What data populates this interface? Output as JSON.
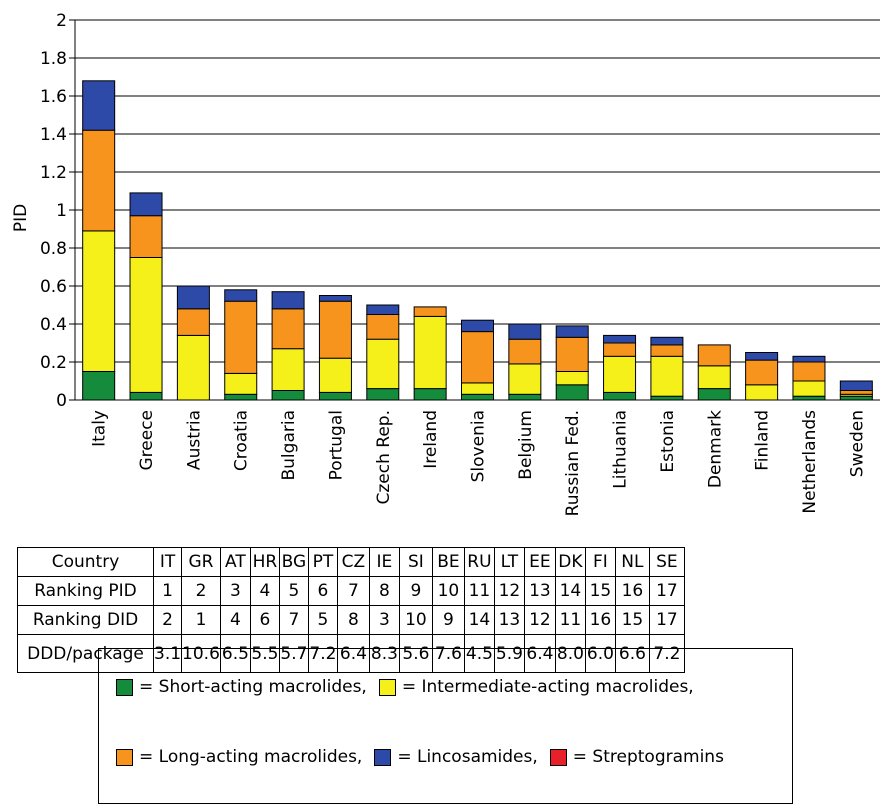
{
  "chart_data": {
    "type": "bar",
    "stacked": true,
    "ylabel": "PID",
    "xlabel": "",
    "ylim": [
      0,
      2
    ],
    "yticks": [
      "0",
      "0.2",
      "0.4",
      "0.6",
      "0.8",
      "1",
      "1.2",
      "1.4",
      "1.6",
      "1.8",
      "2"
    ],
    "grid": true,
    "categories": [
      "Italy",
      "Greece",
      "Austria",
      "Croatia",
      "Bulgaria",
      "Portugal",
      "Czech Rep.",
      "Ireland",
      "Slovenia",
      "Belgium",
      "Russian Fed.",
      "Lithuania",
      "Estonia",
      "Denmark",
      "Finland",
      "Netherlands",
      "Sweden"
    ],
    "series": [
      {
        "name": "Short-acting macrolides",
        "color": "#148c3c",
        "values": [
          0.15,
          0.04,
          0.0,
          0.03,
          0.05,
          0.04,
          0.06,
          0.06,
          0.03,
          0.03,
          0.08,
          0.04,
          0.02,
          0.06,
          0.0,
          0.02,
          0.02
        ]
      },
      {
        "name": "Intermediate-acting macrolides",
        "color": "#f6f01a",
        "values": [
          0.74,
          0.71,
          0.34,
          0.11,
          0.22,
          0.18,
          0.26,
          0.38,
          0.06,
          0.16,
          0.07,
          0.19,
          0.21,
          0.12,
          0.08,
          0.08,
          0.01
        ]
      },
      {
        "name": "Long-acting macrolides",
        "color": "#f7941d",
        "values": [
          0.53,
          0.22,
          0.14,
          0.38,
          0.21,
          0.3,
          0.13,
          0.05,
          0.27,
          0.13,
          0.18,
          0.07,
          0.06,
          0.11,
          0.13,
          0.1,
          0.02
        ]
      },
      {
        "name": "Lincosamides",
        "color": "#2e4aa8",
        "values": [
          0.26,
          0.12,
          0.12,
          0.06,
          0.09,
          0.03,
          0.05,
          0.0,
          0.06,
          0.08,
          0.06,
          0.04,
          0.04,
          0.0,
          0.04,
          0.03,
          0.05
        ]
      },
      {
        "name": "Streptogramins",
        "color": "#e8202a",
        "values": [
          0,
          0,
          0,
          0,
          0,
          0,
          0,
          0,
          0,
          0,
          0,
          0,
          0,
          0,
          0,
          0,
          0
        ]
      }
    ]
  },
  "table": {
    "header_label": "Country",
    "codes": [
      "IT",
      "GR",
      "AT",
      "HR",
      "BG",
      "PT",
      "CZ",
      "IE",
      "SI",
      "BE",
      "RU",
      "LT",
      "EE",
      "DK",
      "FI",
      "NL",
      "SE"
    ],
    "rows": [
      {
        "label": "Ranking PID",
        "values": [
          "1",
          "2",
          "3",
          "4",
          "5",
          "6",
          "7",
          "8",
          "9",
          "10",
          "11",
          "12",
          "13",
          "14",
          "15",
          "16",
          "17"
        ]
      },
      {
        "label": "Ranking DID",
        "values": [
          "2",
          "1",
          "4",
          "6",
          "7",
          "5",
          "8",
          "3",
          "10",
          "9",
          "14",
          "13",
          "12",
          "11",
          "16",
          "15",
          "17"
        ]
      },
      {
        "label": "DDD/package",
        "values": [
          "3.1",
          "10.6",
          "6.5",
          "5.5",
          "5.7",
          "7.2",
          "6.4",
          "8.3",
          "5.6",
          "7.6",
          "4.5",
          "5.9",
          "6.4",
          "8.0",
          "6.0",
          "6.6",
          "7.2"
        ]
      }
    ]
  },
  "legend": {
    "line1": [
      {
        "color": "#148c3c",
        "label": "= Short-acting macrolides,"
      },
      {
        "color": "#f6f01a",
        "label": "= Intermediate-acting macrolides,"
      }
    ],
    "line2": [
      {
        "color": "#f7941d",
        "label": "= Long-acting macrolides,"
      },
      {
        "color": "#2e4aa8",
        "label": "= Lincosamides,"
      },
      {
        "color": "#e8202a",
        "label": "= Streptogramins"
      }
    ]
  }
}
